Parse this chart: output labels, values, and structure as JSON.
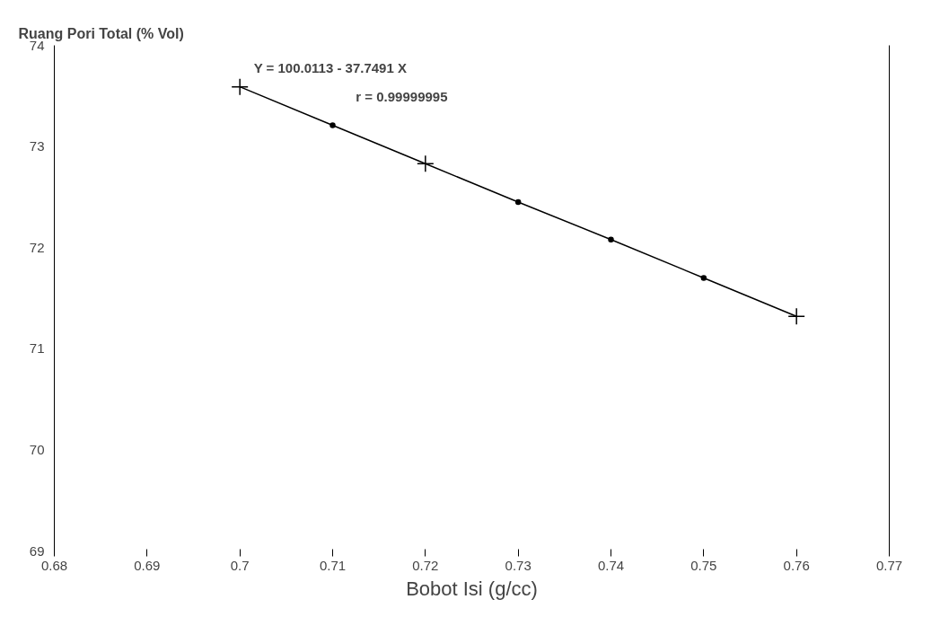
{
  "chart_data": {
    "type": "line",
    "xlabel": "Bobot Isi (g/cc)",
    "ylabel": "Ruang Pori Total (% Vol)",
    "x": [
      0.7,
      0.71,
      0.72,
      0.73,
      0.74,
      0.75,
      0.76
    ],
    "series": [
      {
        "color": "#000000",
        "values": [
          73.59,
          73.21,
          72.83,
          72.45,
          72.08,
          71.7,
          71.32
        ]
      },
      {
        "type": "scatter",
        "color": "#000000",
        "marker": "circle",
        "x": [
          0.71,
          0.73,
          0.74,
          0.75
        ],
        "values": [
          73.21,
          72.45,
          72.08,
          71.7
        ]
      },
      {
        "type": "scatter",
        "color": "#000000",
        "marker": "cross",
        "x": [
          0.7,
          0.72,
          0.76
        ],
        "values": [
          73.59,
          72.83,
          71.32
        ]
      }
    ],
    "xlim": [
      0.68,
      0.77
    ],
    "xticks": [
      0.68,
      0.69,
      0.7,
      0.71,
      0.72,
      0.73,
      0.74,
      0.75,
      0.76,
      0.77
    ],
    "ylim": [
      69,
      74
    ],
    "yticks": [
      69,
      70,
      71,
      72,
      73,
      74
    ],
    "grid": false,
    "annotations": [
      "Y = 100.0113 - 37.7491 X",
      "r = 0.99999995"
    ]
  }
}
